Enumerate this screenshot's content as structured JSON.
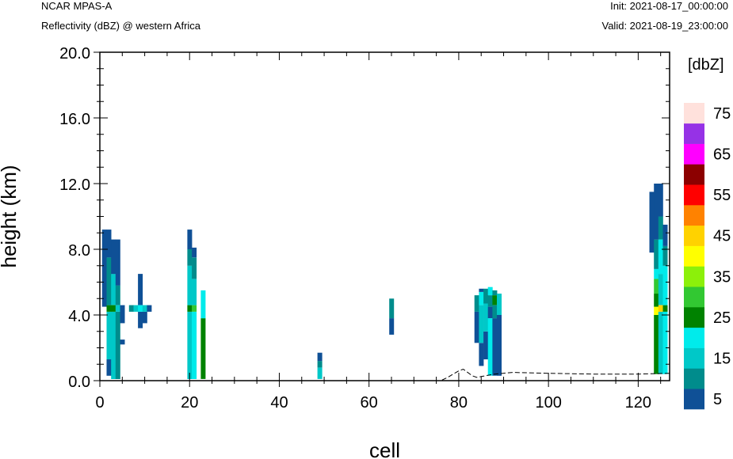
{
  "header": {
    "model": "NCAR MPAS-A",
    "field": "Reflectivity (dBZ) @ western Africa",
    "init": "Init: 2021-08-17_00:00:00",
    "valid": "Valid: 2021-08-19_23:00:00"
  },
  "colorbar": {
    "title": "[dbZ]",
    "labels": [
      "5",
      "15",
      "25",
      "35",
      "45",
      "55",
      "65",
      "75"
    ],
    "colors": [
      "#0f5096",
      "#008c8c",
      "#00c8c8",
      "#00ebeb",
      "#008200",
      "#32c832",
      "#8cf00a",
      "#ffff00",
      "#ffd200",
      "#ff8200",
      "#ff0000",
      "#8c0000",
      "#ff00ff",
      "#9632e6",
      "#ffe1dc"
    ]
  },
  "chart_data": {
    "type": "heatmap",
    "title": "Reflectivity (dBZ) @ western Africa",
    "xlabel": "cell",
    "ylabel": "height (km)",
    "xlim": [
      0,
      127
    ],
    "ylim": [
      0,
      20
    ],
    "xticks": [
      "0",
      "20",
      "40",
      "60",
      "80",
      "100",
      "120"
    ],
    "yticks": [
      "0.0",
      "4.0",
      "8.0",
      "12.0",
      "16.0",
      "20.0"
    ],
    "value_units": "dBZ",
    "color_levels": [
      0,
      5,
      10,
      15,
      20,
      25,
      30,
      35,
      40,
      45,
      50,
      55,
      60,
      65,
      70,
      75
    ],
    "columns": [
      {
        "x": 1,
        "segments": [
          [
            4.5,
            9.2,
            5
          ]
        ]
      },
      {
        "x": 2,
        "segments": [
          [
            0.3,
            1.3,
            5
          ],
          [
            1.3,
            4.2,
            15
          ],
          [
            4.2,
            4.6,
            25
          ],
          [
            4.6,
            7.5,
            10
          ],
          [
            7.5,
            9.2,
            5
          ]
        ]
      },
      {
        "x": 3,
        "segments": [
          [
            0.1,
            4.2,
            15
          ],
          [
            4.2,
            4.6,
            25
          ],
          [
            4.6,
            6.5,
            15
          ],
          [
            6.5,
            8.6,
            5
          ]
        ]
      },
      {
        "x": 4,
        "segments": [
          [
            0.1,
            4.2,
            10
          ],
          [
            4.2,
            4.6,
            15
          ],
          [
            4.6,
            5.8,
            10
          ],
          [
            5.8,
            8.6,
            5
          ]
        ]
      },
      {
        "x": 5,
        "segments": [
          [
            2.2,
            2.5,
            5
          ],
          [
            3.5,
            4.6,
            5
          ]
        ]
      },
      {
        "x": 7,
        "segments": [
          [
            4.2,
            4.6,
            10
          ]
        ]
      },
      {
        "x": 8,
        "segments": [
          [
            4.2,
            4.6,
            15
          ]
        ]
      },
      {
        "x": 9,
        "segments": [
          [
            3.2,
            4.2,
            5
          ],
          [
            4.2,
            4.6,
            20
          ],
          [
            4.6,
            6.5,
            5
          ]
        ]
      },
      {
        "x": 10,
        "segments": [
          [
            3.5,
            4.2,
            5
          ],
          [
            4.2,
            4.6,
            15
          ]
        ]
      },
      {
        "x": 11,
        "segments": [
          [
            4.2,
            4.6,
            5
          ]
        ]
      },
      {
        "x": 20,
        "segments": [
          [
            0.1,
            4.2,
            15
          ],
          [
            4.2,
            4.6,
            25
          ],
          [
            4.6,
            7.0,
            15
          ],
          [
            7.0,
            8.0,
            10
          ],
          [
            8.0,
            9.2,
            5
          ]
        ]
      },
      {
        "x": 21,
        "segments": [
          [
            0.1,
            4.2,
            20
          ],
          [
            4.2,
            4.6,
            30
          ],
          [
            4.6,
            6.2,
            15
          ],
          [
            6.2,
            7.5,
            10
          ],
          [
            7.5,
            8.1,
            5
          ]
        ]
      },
      {
        "x": 23,
        "segments": [
          [
            0.1,
            3.8,
            25
          ],
          [
            3.8,
            5.5,
            20
          ]
        ]
      },
      {
        "x": 49,
        "segments": [
          [
            0.1,
            0.8,
            15
          ],
          [
            0.8,
            1.2,
            10
          ],
          [
            1.2,
            1.7,
            5
          ]
        ]
      },
      {
        "x": 65,
        "segments": [
          [
            2.8,
            3.8,
            5
          ],
          [
            3.8,
            5.0,
            10
          ]
        ]
      },
      {
        "x": 84,
        "segments": [
          [
            2.3,
            4.2,
            5
          ],
          [
            4.2,
            5.2,
            10
          ]
        ]
      },
      {
        "x": 85,
        "segments": [
          [
            0.9,
            2.3,
            5
          ],
          [
            2.3,
            4.6,
            15
          ],
          [
            4.6,
            5.4,
            20
          ],
          [
            5.4,
            5.6,
            5
          ]
        ]
      },
      {
        "x": 86,
        "segments": [
          [
            1.3,
            3.0,
            5
          ],
          [
            3.0,
            4.7,
            15
          ],
          [
            4.7,
            5.6,
            10
          ]
        ]
      },
      {
        "x": 87,
        "segments": [
          [
            0.3,
            3.8,
            20
          ],
          [
            3.8,
            4.5,
            5
          ],
          [
            4.5,
            5.2,
            10
          ],
          [
            5.2,
            5.7,
            20
          ]
        ]
      },
      {
        "x": 88,
        "segments": [
          [
            0.3,
            3.8,
            5
          ],
          [
            3.8,
            4.6,
            10
          ],
          [
            4.6,
            5.2,
            25
          ],
          [
            5.2,
            5.5,
            10
          ]
        ]
      },
      {
        "x": 89,
        "segments": [
          [
            0.3,
            4.0,
            5
          ],
          [
            4.0,
            5.3,
            15
          ]
        ]
      },
      {
        "x": 123,
        "segments": [
          [
            7.8,
            11.5,
            5
          ]
        ]
      },
      {
        "x": 124,
        "segments": [
          [
            0.4,
            4.0,
            25
          ],
          [
            4.0,
            4.5,
            40
          ],
          [
            4.5,
            5.3,
            25
          ],
          [
            5.3,
            6.2,
            30
          ],
          [
            6.2,
            6.8,
            20
          ],
          [
            6.8,
            8.6,
            10
          ],
          [
            8.6,
            12.0,
            5
          ]
        ]
      },
      {
        "x": 125,
        "segments": [
          [
            0.4,
            4.2,
            15
          ],
          [
            4.2,
            4.6,
            45
          ],
          [
            4.6,
            6.5,
            15
          ],
          [
            6.5,
            8.6,
            20
          ],
          [
            8.6,
            10.0,
            10
          ],
          [
            10.0,
            12.0,
            5
          ]
        ]
      },
      {
        "x": 126,
        "segments": [
          [
            0.4,
            4.2,
            20
          ],
          [
            4.2,
            4.6,
            25
          ],
          [
            4.6,
            7.0,
            20
          ],
          [
            7.0,
            8.2,
            10
          ],
          [
            8.2,
            9.5,
            5
          ]
        ]
      }
    ],
    "terrain": [
      [
        0,
        0
      ],
      [
        76,
        0
      ],
      [
        77.5,
        0.2
      ],
      [
        80,
        0.6
      ],
      [
        81,
        0.7
      ],
      [
        83,
        0.3
      ],
      [
        84,
        0.2
      ],
      [
        85,
        0.25
      ],
      [
        88,
        0.4
      ],
      [
        92,
        0.5
      ],
      [
        100,
        0.45
      ],
      [
        110,
        0.4
      ],
      [
        120,
        0.4
      ],
      [
        127,
        0.45
      ]
    ]
  }
}
